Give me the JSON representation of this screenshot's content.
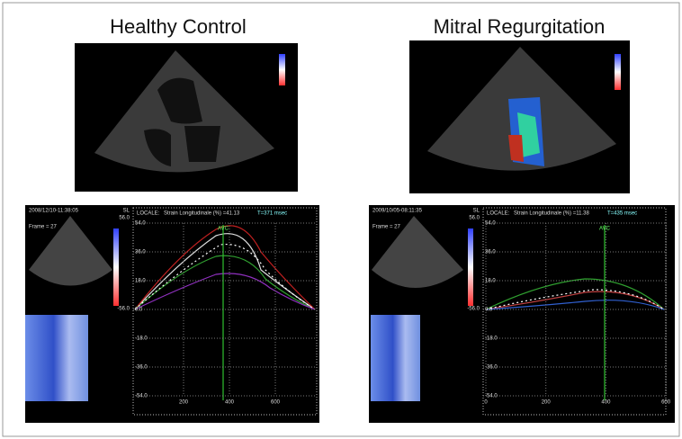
{
  "panels": [
    {
      "title": "Healthy Control",
      "strain": {
        "date": "2008/12/10-11:38:05",
        "frame": "Frame = 27",
        "scale_label": "SL",
        "scale_max": "56.0",
        "scale_min": "-56.0",
        "locale": "LOCALE:",
        "measure": "Strain Longitudinale (%) =41.13",
        "time": "T=371 msec",
        "avc": "AVC",
        "yticks": [
          "54.0",
          "36.0",
          "18.0",
          "0.0",
          "-18.0",
          "-36.0",
          "-54.0"
        ],
        "xticks": [
          "200",
          "400",
          "600"
        ]
      }
    },
    {
      "title": "Mitral Regurgitation",
      "strain": {
        "date": "2009/10/05-08:11:35",
        "frame": "Frame = 27",
        "scale_label": "SL",
        "scale_max": "56.0",
        "scale_min": "-56.0",
        "locale": "LOCALE:",
        "measure": "Strain Longitudinale (%) =11.38",
        "time": "T=435 msec",
        "avc": "AVC",
        "yticks": [
          "54.0",
          "36.0",
          "18.0",
          "0.0",
          "-18.0",
          "-36.0",
          "-54.0"
        ],
        "xticks": [
          "0",
          "200",
          "400",
          "600"
        ]
      }
    }
  ]
}
